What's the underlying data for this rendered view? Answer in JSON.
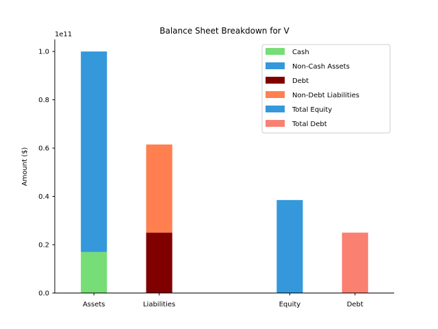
{
  "chart_data": {
    "type": "bar",
    "title": "Balance Sheet Breakdown for V",
    "xlabel": "",
    "ylabel": "Amount ($)",
    "offset_text": "1e11",
    "ylim": [
      0,
      1.05
    ],
    "yticks": [
      0.0,
      0.2,
      0.4,
      0.6,
      0.8,
      1.0
    ],
    "ytick_labels": [
      "0.0",
      "0.2",
      "0.4",
      "0.6",
      "0.8",
      "1.0"
    ],
    "categories": [
      "Assets",
      "Liabilities",
      "Equity",
      "Debt"
    ],
    "category_positions": [
      0,
      1,
      3,
      4
    ],
    "series": [
      {
        "name": "Cash",
        "color": "#77dd77",
        "category": "Assets",
        "bottom": 0,
        "value": 0.17
      },
      {
        "name": "Non-Cash Assets",
        "color": "#3498db",
        "category": "Assets",
        "bottom": 0.17,
        "value": 0.83
      },
      {
        "name": "Debt",
        "color": "#800000",
        "category": "Liabilities",
        "bottom": 0,
        "value": 0.25
      },
      {
        "name": "Non-Debt Liabilities",
        "color": "#ff7f50",
        "category": "Liabilities",
        "bottom": 0.25,
        "value": 0.365
      },
      {
        "name": "Total Equity",
        "color": "#3498db",
        "category": "Equity",
        "bottom": 0,
        "value": 0.385
      },
      {
        "name": "Total Debt",
        "color": "#fa8072",
        "category": "Debt",
        "bottom": 0,
        "value": 0.25
      }
    ],
    "legend": [
      "Cash",
      "Non-Cash Assets",
      "Debt",
      "Non-Debt Liabilities",
      "Total Equity",
      "Total Debt"
    ],
    "legend_position": "top-right",
    "grid": false
  }
}
